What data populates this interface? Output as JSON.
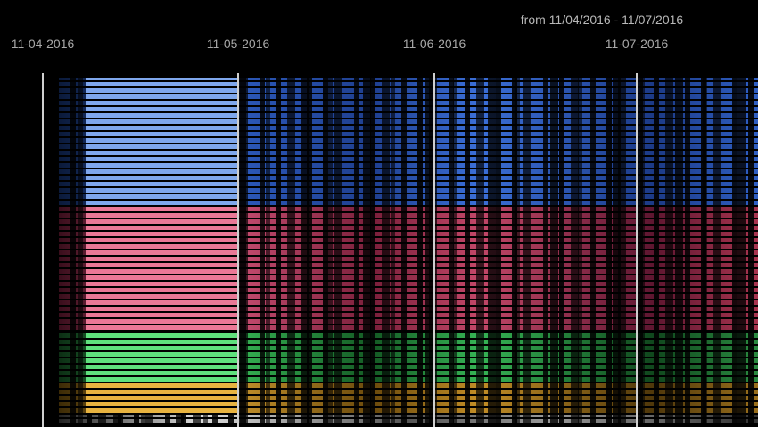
{
  "header": {
    "range": "from 11/04/2016 - 11/07/2016"
  },
  "axis": {
    "ticks": [
      "11-04-2016",
      "11-05-2016",
      "11-06-2016",
      "11-07-2016"
    ]
  }
}
